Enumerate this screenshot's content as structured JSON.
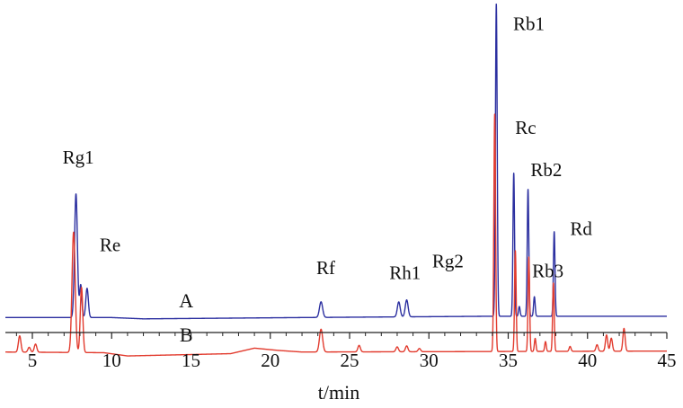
{
  "chart_data": {
    "type": "line",
    "title": "",
    "xlabel": "t/min",
    "ylabel": "",
    "xlim": [
      3.3,
      45
    ],
    "xticks": [
      5,
      10,
      15,
      20,
      25,
      30,
      35,
      40,
      45
    ],
    "ylim": [
      0,
      1
    ],
    "grid": false,
    "legend": "none",
    "series": [
      {
        "name": "A",
        "color": "#2b2fa0",
        "baseline": 0.046,
        "drift": [
          [
            3.3,
            0.0
          ],
          [
            10.0,
            0.0
          ],
          [
            12.0,
            -0.004
          ],
          [
            22.0,
            0.0
          ],
          [
            34.0,
            0.004
          ],
          [
            45.0,
            0.004
          ]
        ],
        "peaks": [
          {
            "t": 7.75,
            "h": 0.38,
            "w": 0.09
          },
          {
            "t": 8.05,
            "h": 0.1,
            "w": 0.07
          },
          {
            "t": 8.45,
            "h": 0.09,
            "w": 0.08
          },
          {
            "t": 23.2,
            "h": 0.048,
            "w": 0.1
          },
          {
            "t": 28.1,
            "h": 0.046,
            "w": 0.09
          },
          {
            "t": 28.6,
            "h": 0.052,
            "w": 0.09
          },
          {
            "t": 34.25,
            "h": 0.96,
            "w": 0.055
          },
          {
            "t": 35.35,
            "h": 0.44,
            "w": 0.05
          },
          {
            "t": 35.7,
            "h": 0.03,
            "w": 0.05
          },
          {
            "t": 36.25,
            "h": 0.39,
            "w": 0.05
          },
          {
            "t": 36.65,
            "h": 0.06,
            "w": 0.05
          },
          {
            "t": 37.9,
            "h": 0.26,
            "w": 0.05
          }
        ]
      },
      {
        "name": "B",
        "color": "#e23b2e",
        "baseline": -0.06,
        "drift": [
          [
            3.3,
            0.0
          ],
          [
            9.5,
            -0.002
          ],
          [
            11.0,
            -0.012
          ],
          [
            17.5,
            -0.005
          ],
          [
            19.0,
            0.012
          ],
          [
            20.5,
            0.005
          ],
          [
            22.0,
            0.0
          ],
          [
            45.0,
            0.003
          ]
        ],
        "peaks": [
          {
            "t": 4.2,
            "h": 0.05,
            "w": 0.08
          },
          {
            "t": 4.8,
            "h": 0.015,
            "w": 0.08
          },
          {
            "t": 5.2,
            "h": 0.025,
            "w": 0.08
          },
          {
            "t": 7.6,
            "h": 0.37,
            "w": 0.1
          },
          {
            "t": 8.1,
            "h": 0.2,
            "w": 0.08
          },
          {
            "t": 23.2,
            "h": 0.07,
            "w": 0.1
          },
          {
            "t": 25.6,
            "h": 0.02,
            "w": 0.08
          },
          {
            "t": 28.0,
            "h": 0.015,
            "w": 0.08
          },
          {
            "t": 28.6,
            "h": 0.018,
            "w": 0.08
          },
          {
            "t": 29.4,
            "h": 0.01,
            "w": 0.08
          },
          {
            "t": 34.15,
            "h": 0.73,
            "w": 0.055
          },
          {
            "t": 35.45,
            "h": 0.31,
            "w": 0.05
          },
          {
            "t": 36.3,
            "h": 0.29,
            "w": 0.05
          },
          {
            "t": 36.7,
            "h": 0.04,
            "w": 0.05
          },
          {
            "t": 37.35,
            "h": 0.03,
            "w": 0.05
          },
          {
            "t": 37.85,
            "h": 0.21,
            "w": 0.05
          },
          {
            "t": 38.9,
            "h": 0.015,
            "w": 0.06
          },
          {
            "t": 40.6,
            "h": 0.02,
            "w": 0.07
          },
          {
            "t": 41.2,
            "h": 0.05,
            "w": 0.07
          },
          {
            "t": 41.5,
            "h": 0.04,
            "w": 0.07
          },
          {
            "t": 42.3,
            "h": 0.07,
            "w": 0.07
          }
        ]
      }
    ],
    "trace_labels": [
      {
        "text": "A",
        "series": 0,
        "t": 14.7,
        "dy": 0.032
      },
      {
        "text": "B",
        "series": 1,
        "t": 14.7,
        "dy": 0.032
      }
    ],
    "annotations": [
      {
        "text": "Rg1",
        "t": 7.9,
        "y": 0.52
      },
      {
        "text": "Re",
        "t": 9.9,
        "y": 0.25
      },
      {
        "text": "Rf",
        "t": 23.5,
        "y": 0.18
      },
      {
        "text": "Rh1",
        "t": 28.5,
        "y": 0.165
      },
      {
        "text": "Rg2",
        "t": 31.2,
        "y": 0.2
      },
      {
        "text": "Rb1",
        "t": 36.3,
        "y": 0.93
      },
      {
        "text": "Rc",
        "t": 36.1,
        "y": 0.61
      },
      {
        "text": "Rb2",
        "t": 37.4,
        "y": 0.48
      },
      {
        "text": "Rb3",
        "t": 37.5,
        "y": 0.17
      },
      {
        "text": "Rd",
        "t": 39.6,
        "y": 0.3
      }
    ]
  }
}
